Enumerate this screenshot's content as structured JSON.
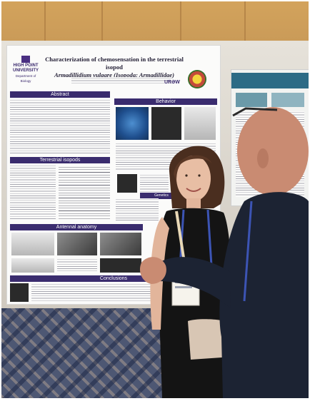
{
  "poster": {
    "title_line1": "Characterization of chemosensation in the terrestrial isopod",
    "title_line2": "Armadillidium vulgare (Isopoda: Armadillidae)",
    "university_line1": "HIGH POINT",
    "university_line2": "UNIVERSITY",
    "department": "Department of Biology",
    "logo_ursa": "URƏW",
    "sections": {
      "abstract": "Abstract",
      "behavior": "Behavior",
      "terrestrial": "Terrestrial isopods",
      "antennal": "Antennal anatomy",
      "genetics": "Genetics",
      "conclusions": "Conclusions"
    }
  },
  "colors": {
    "poster_band": "#3a2c6e",
    "wall": "#d3a35c",
    "carpet": "#4d5773",
    "lanyard": "#3c54b4",
    "woman_top": "#141414",
    "man_shirt": "#1c2333"
  }
}
